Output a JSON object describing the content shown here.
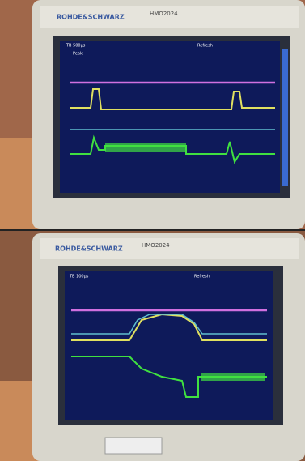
{
  "photos": [
    {
      "brand": "ROHDE&SCHWARZ",
      "model": "HMO2024",
      "screen": {
        "timebase": "TB 500µs",
        "mode": "Peak",
        "refresh": "Refresh"
      }
    },
    {
      "brand": "ROHDE&SCHWARZ",
      "model": "HMO2024",
      "screen": {
        "timebase": "TB 100µs",
        "refresh": "Refresh"
      }
    }
  ]
}
